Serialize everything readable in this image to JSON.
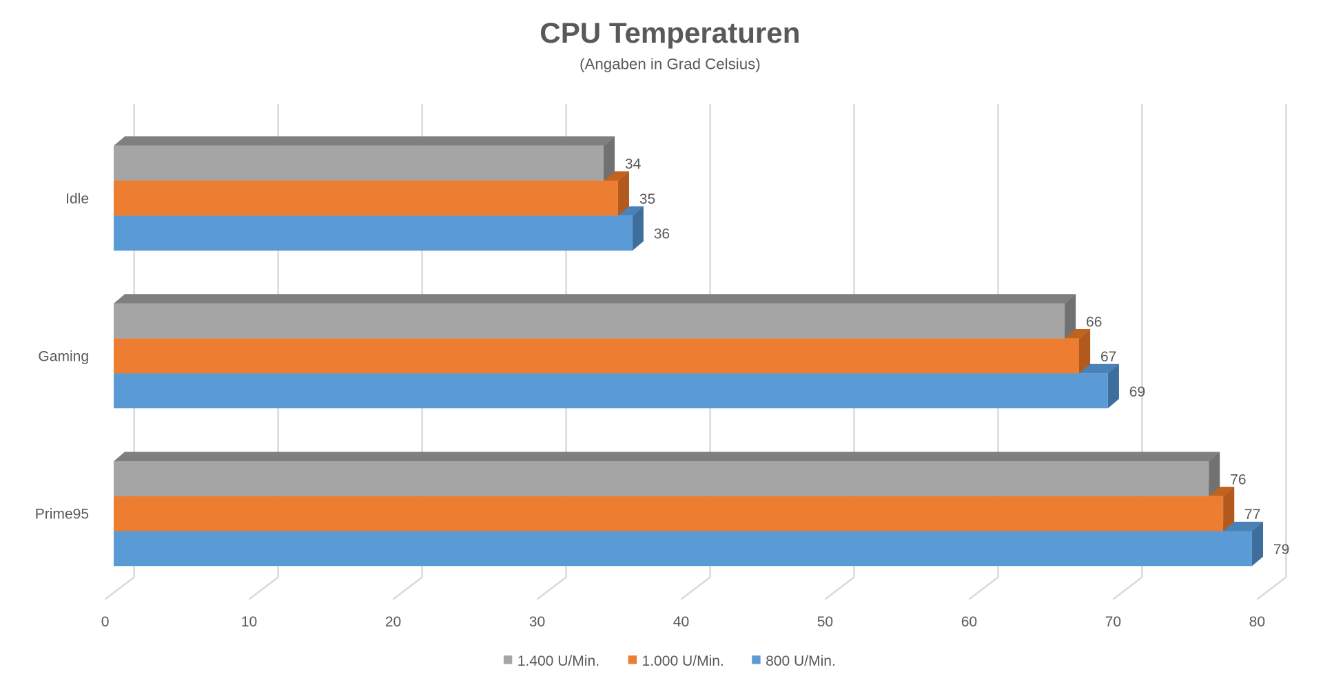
{
  "chart_data": {
    "type": "bar",
    "orientation": "horizontal",
    "style": "3d-clustered",
    "title": "CPU Temperaturen",
    "subtitle": "(Angaben in Grad Celsius)",
    "xlabel": "",
    "ylabel": "",
    "categories": [
      "Idle",
      "Gaming",
      "Prime95"
    ],
    "series": [
      {
        "name": "1.400 U/Min.",
        "color": "#A5A5A5",
        "values": [
          34,
          66,
          76
        ]
      },
      {
        "name": "1.000 U/Min.",
        "color": "#ED7D31",
        "values": [
          35,
          67,
          77
        ]
      },
      {
        "name": "800 U/Min.",
        "color": "#5B9BD5",
        "values": [
          36,
          69,
          79
        ]
      }
    ],
    "xlim": [
      0,
      80
    ],
    "xticks": [
      "0",
      "10",
      "20",
      "30",
      "40",
      "50",
      "60",
      "70",
      "80"
    ],
    "grid": true,
    "data_labels": true,
    "legend_position": "bottom"
  }
}
